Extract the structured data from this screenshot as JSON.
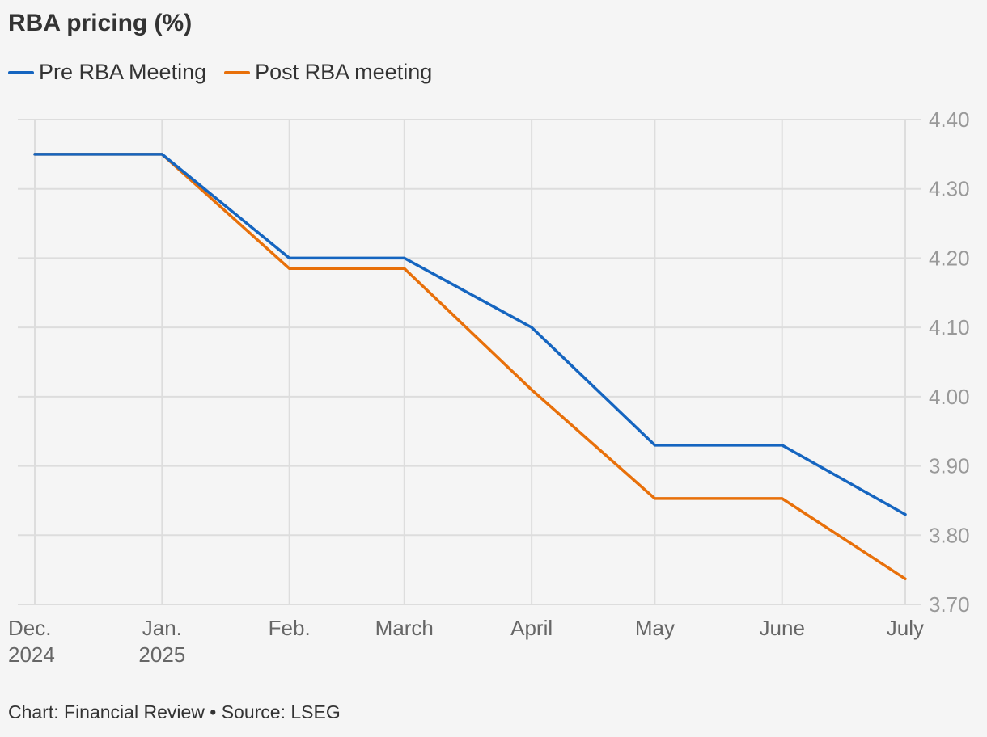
{
  "title": "RBA pricing (%)",
  "footer": "Chart: Financial Review • Source: LSEG",
  "colors": {
    "pre": "#1565c0",
    "post": "#e8700a",
    "grid": "#dddddd",
    "tick_text": "#999999",
    "x_text": "#666666"
  },
  "chart_data": {
    "type": "line",
    "title": "RBA pricing (%)",
    "categories": [
      "Dec. 2024",
      "Jan. 2025",
      "Feb.",
      "March",
      "April",
      "May",
      "June",
      "July"
    ],
    "category_lines": [
      [
        "Dec.",
        "2024"
      ],
      [
        "Jan.",
        "2025"
      ],
      [
        "Feb."
      ],
      [
        "March"
      ],
      [
        "April"
      ],
      [
        "May"
      ],
      [
        "June"
      ],
      [
        "July"
      ]
    ],
    "x_days": [
      0,
      31,
      62,
      90,
      121,
      151,
      182,
      212
    ],
    "series": [
      {
        "name": "Pre RBA Meeting",
        "color": "#1565c0",
        "values": [
          4.35,
          4.35,
          4.2,
          4.2,
          4.1,
          3.93,
          3.93,
          3.83
        ]
      },
      {
        "name": "Post RBA meeting",
        "color": "#e8700a",
        "values": [
          4.35,
          4.35,
          4.185,
          4.185,
          4.01,
          3.853,
          3.853,
          3.737
        ]
      }
    ],
    "yticks": [
      "3.70",
      "3.80",
      "3.90",
      "4.00",
      "4.10",
      "4.20",
      "4.30",
      "4.40"
    ],
    "ylim": [
      3.7,
      4.4
    ],
    "yaxis_position": "right",
    "grid": true,
    "legend_position": "top-left"
  }
}
